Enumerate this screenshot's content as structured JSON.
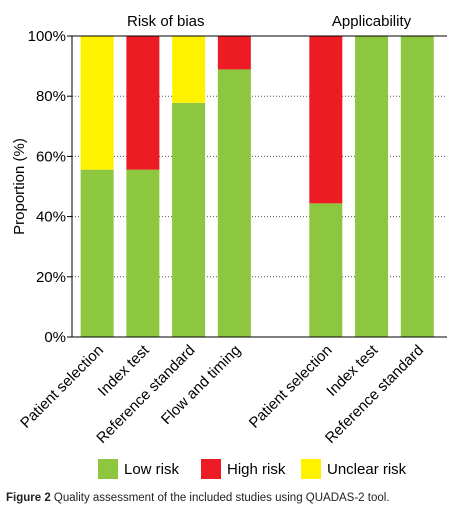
{
  "chart_data": {
    "type": "bar",
    "stacked": true,
    "group_titles": [
      "Risk of bias",
      "Applicability"
    ],
    "categories": [
      "Patient selection",
      "Index test",
      "Reference standard",
      "Flow and timing",
      "Patient selection",
      "Index test",
      "Reference standard"
    ],
    "groups": [
      0,
      0,
      0,
      0,
      1,
      1,
      1
    ],
    "series": [
      {
        "name": "Low risk",
        "color": "#8dc63f",
        "values": [
          55.6,
          55.6,
          77.8,
          88.9,
          44.4,
          100,
          100
        ]
      },
      {
        "name": "High risk",
        "color": "#ed1c24",
        "values": [
          0,
          44.4,
          0,
          11.1,
          55.6,
          0,
          0
        ]
      },
      {
        "name": "Unclear risk",
        "color": "#fff200",
        "values": [
          44.4,
          0,
          22.2,
          0,
          0,
          0,
          0
        ]
      }
    ],
    "ylabel": "Proportion (%)",
    "ylim": [
      0,
      100
    ],
    "yticks": [
      0,
      20,
      40,
      60,
      80,
      100
    ],
    "ytick_labels": [
      "0%",
      "20%",
      "40%",
      "60%",
      "80%",
      "100%"
    ],
    "grid": "dotted-horizontal",
    "legend_position": "bottom"
  },
  "caption": {
    "label": "Figure 2",
    "text": " Quality assessment of the included studies using QUADAS-2 tool."
  }
}
